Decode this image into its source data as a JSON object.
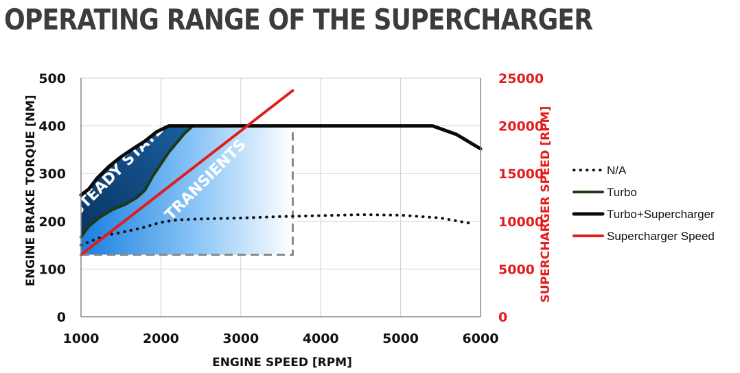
{
  "chart_data": {
    "type": "line",
    "title": "OPERATING RANGE OF THE SUPERCHARGER",
    "xlabel": "ENGINE SPEED [RPM]",
    "ylabel": "ENGINE BRAKE TORQUE [NM]",
    "y2label": "SUPERCHARGER SPEED [RPM]",
    "xlim": [
      1000,
      6000
    ],
    "ylim": [
      0,
      500
    ],
    "y2lim": [
      0,
      25000
    ],
    "xticks": [
      "1000",
      "2000",
      "3000",
      "4000",
      "5000",
      "6000"
    ],
    "yticks": [
      "0",
      "100",
      "200",
      "300",
      "400",
      "500"
    ],
    "y2ticks": [
      "0",
      "5000",
      "10000",
      "15000",
      "20000",
      "25000"
    ],
    "grid": true,
    "legend_position": "right",
    "colors": {
      "left_axis": "#111111",
      "right_axis": "#e31b1b",
      "steady": "#0a3b6e",
      "transients": "#1e8ae6",
      "boundary": "#8a8a8a"
    },
    "series": [
      {
        "name": "N/A",
        "style": "dotted",
        "axis": "left",
        "x": [
          1000,
          1300,
          1600,
          1800,
          2000,
          2200,
          2500,
          3000,
          3500,
          4000,
          4500,
          5000,
          5500,
          5900
        ],
        "y": [
          150,
          170,
          180,
          188,
          198,
          203,
          205,
          207,
          210,
          212,
          214,
          213,
          207,
          195
        ]
      },
      {
        "name": "Turbo",
        "style": "solid",
        "axis": "left",
        "x": [
          1000,
          1100,
          1250,
          1400,
          1550,
          1700,
          1800,
          1900,
          2000,
          2100,
          2200,
          2300,
          2400
        ],
        "y": [
          167,
          190,
          210,
          225,
          235,
          250,
          265,
          295,
          320,
          345,
          365,
          385,
          400
        ]
      },
      {
        "name": "Turbo+Supercharger",
        "style": "solid",
        "axis": "left",
        "x": [
          1000,
          1100,
          1200,
          1350,
          1500,
          1650,
          1800,
          1950,
          2100,
          5400,
          5700,
          6000
        ],
        "y": [
          255,
          268,
          290,
          315,
          335,
          352,
          368,
          388,
          400,
          400,
          382,
          352
        ]
      },
      {
        "name": "Supercharger Speed",
        "style": "solid",
        "axis": "right",
        "x": [
          1000,
          3650
        ],
        "y": [
          6500,
          23700
        ]
      }
    ],
    "transient_boundary": {
      "x": [
        1000,
        3650,
        3650
      ],
      "y": [
        130,
        130,
        400
      ]
    },
    "annotations": [
      {
        "text": "STEADY STATE",
        "x": 1500,
        "y": 300
      },
      {
        "text": "TRANSIENTS",
        "x": 2600,
        "y": 280
      }
    ]
  }
}
